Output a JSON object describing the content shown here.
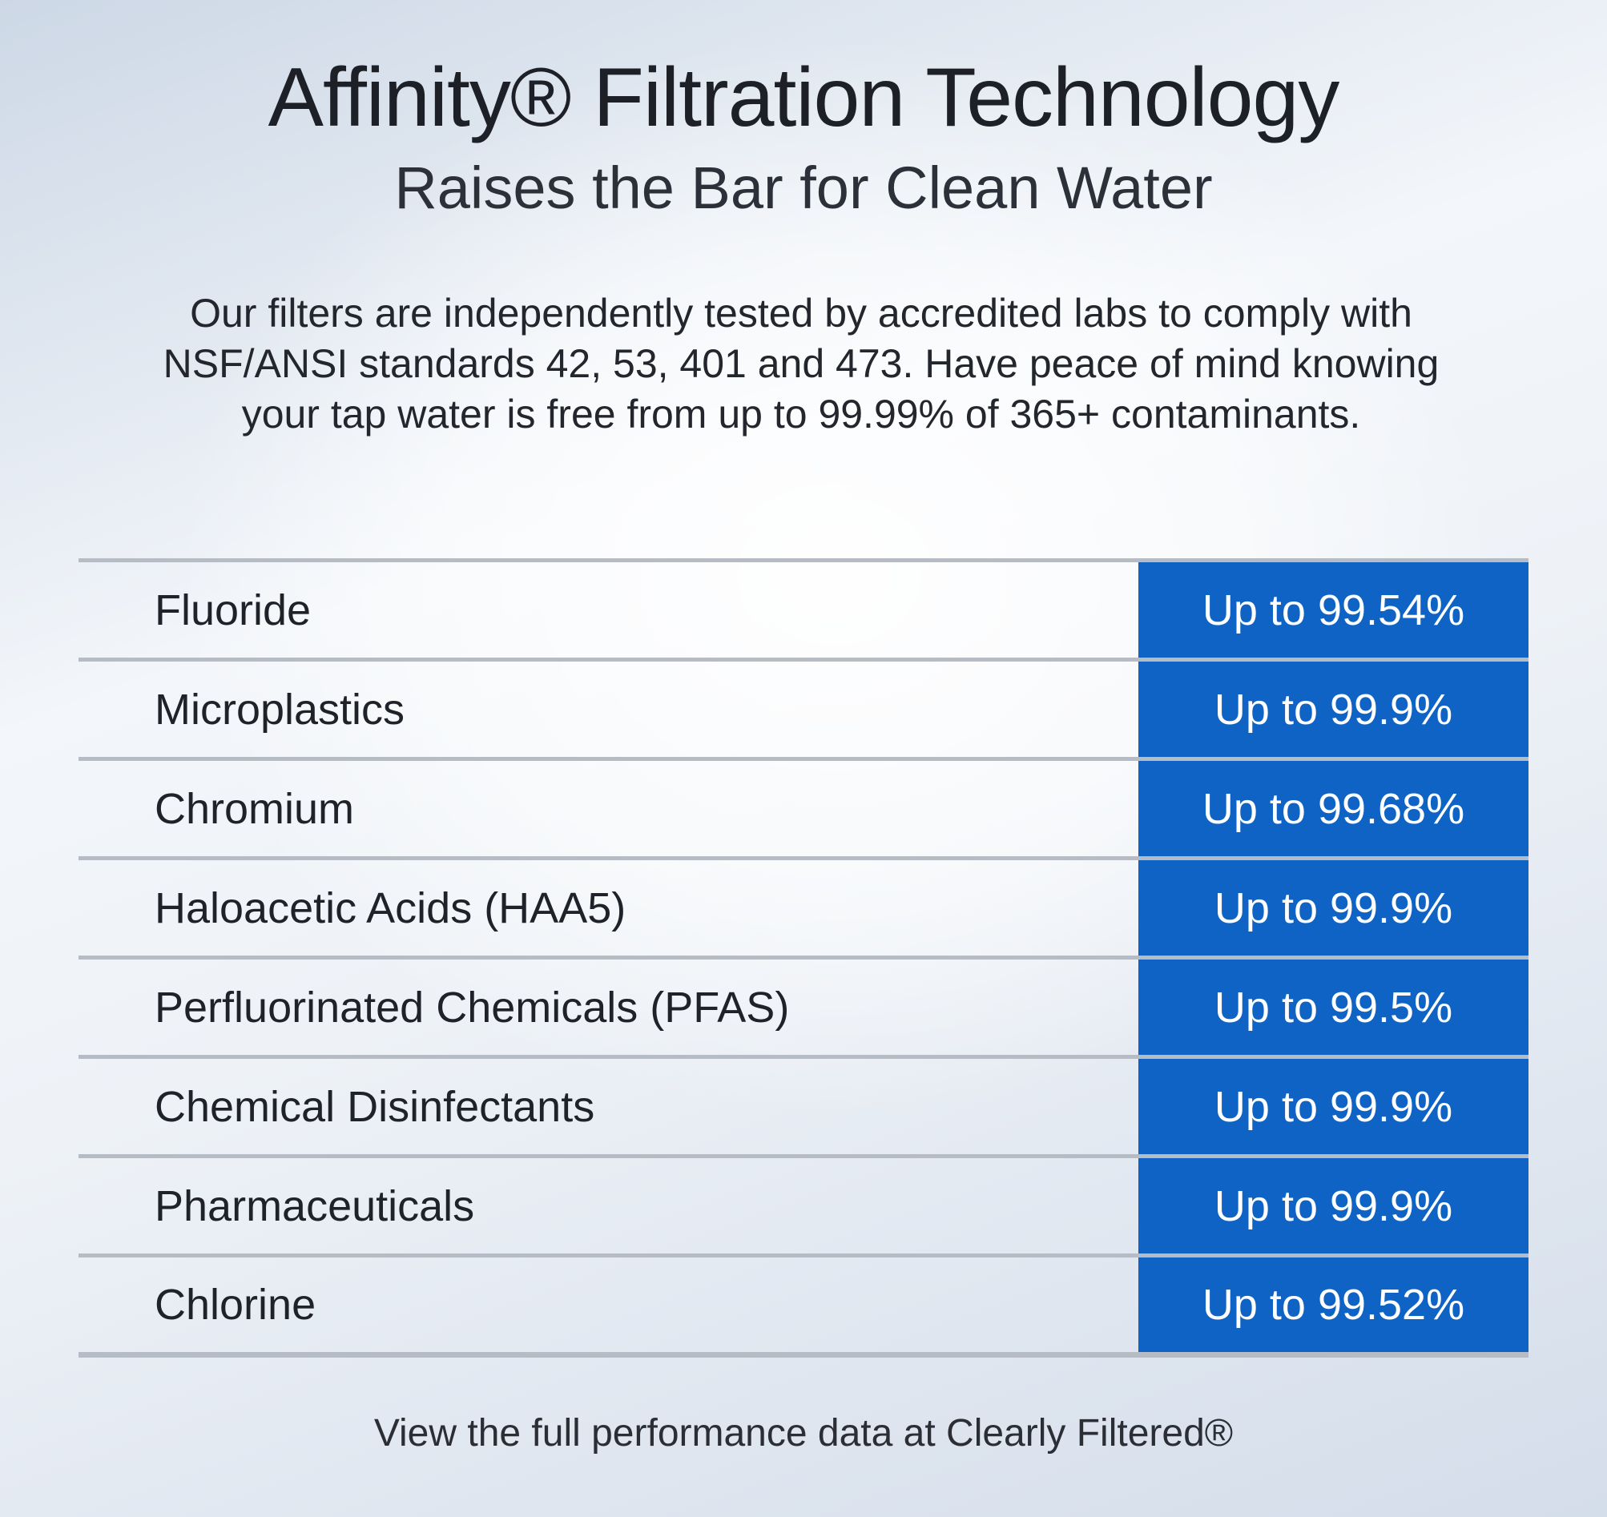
{
  "header": {
    "title": "Affinity® Filtration Technology",
    "subtitle": "Raises the Bar for Clean Water"
  },
  "intro": {
    "text": "Our filters are independently tested by accredited labs to comply with NSF/ANSI standards 42, 53, 401 and 473. Have peace of mind knowing your tap water is free from up to 99.99% of 365+ contaminants."
  },
  "table": {
    "rows": [
      {
        "contaminant": "Fluoride",
        "value": "Up to 99.54%"
      },
      {
        "contaminant": "Microplastics",
        "value": "Up to 99.9%"
      },
      {
        "contaminant": "Chromium",
        "value": "Up to 99.68%"
      },
      {
        "contaminant": "Haloacetic Acids (HAA5)",
        "value": "Up to 99.9%"
      },
      {
        "contaminant": "Perfluorinated Chemicals (PFAS)",
        "value": "Up to 99.5%"
      },
      {
        "contaminant": "Chemical Disinfectants",
        "value": "Up to 99.9%"
      },
      {
        "contaminant": "Pharmaceuticals",
        "value": "Up to 99.9%"
      },
      {
        "contaminant": "Chlorine",
        "value": "Up to 99.52%"
      }
    ]
  },
  "footer": {
    "note": "View the full performance data at Clearly Filtered®"
  },
  "colors": {
    "value_cell": "#0f63c4",
    "row_divider": "#b5bcc6"
  }
}
